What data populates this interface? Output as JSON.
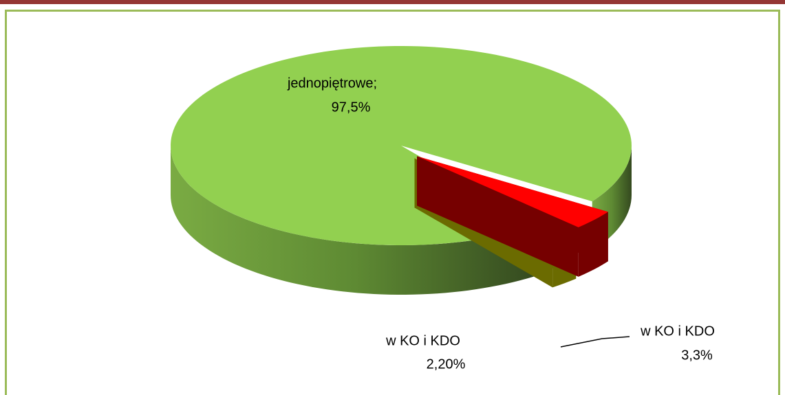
{
  "chart_data": {
    "type": "pie3d",
    "categories": [
      "jednopiętrowe;",
      "w KO i KDO",
      "w KO i KDO"
    ],
    "values": [
      97.5,
      2.2,
      3.3
    ],
    "value_labels": [
      "97,5%",
      "2,20%",
      "3,3%"
    ],
    "colors": [
      "#92d050",
      "#ffff00",
      "#ff0000"
    ]
  }
}
